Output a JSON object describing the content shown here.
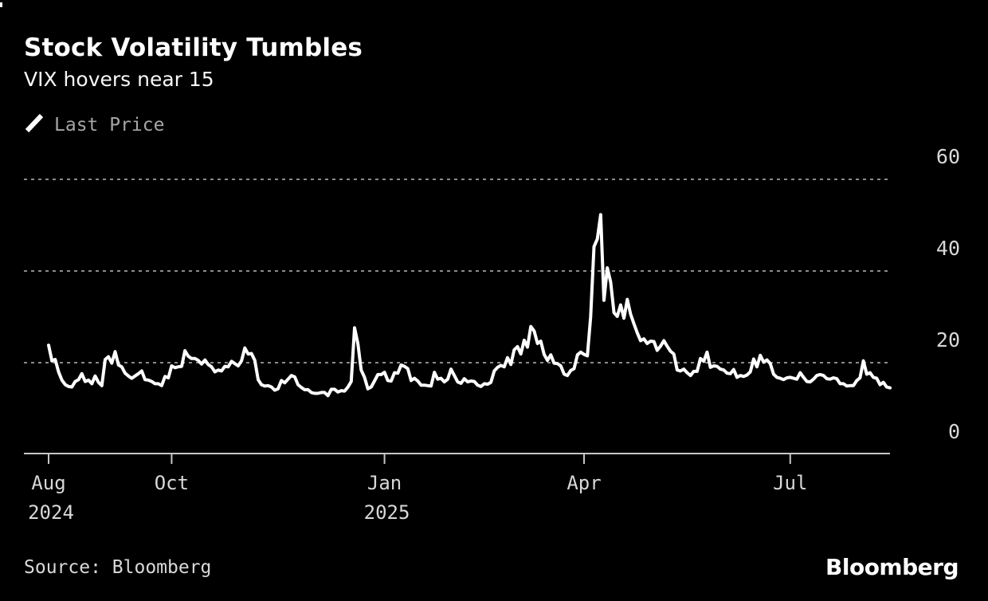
{
  "header": {
    "title": "Stock Volatility Tumbles",
    "subtitle": "VIX hovers near 15"
  },
  "legend": {
    "label": "Last Price",
    "marker": "diagonal-line-icon",
    "marker_color": "#ffffff"
  },
  "footer": {
    "source": "Source: Bloomberg",
    "brand": "Bloomberg"
  },
  "colors": {
    "background": "#000000",
    "line": "#ffffff",
    "grid": "#8b8b8b",
    "axis": "#c6c6c6",
    "tick_label": "#d8d8d8",
    "legend_text": "#a6a6a6"
  },
  "chart_data": {
    "type": "line",
    "title": "Stock Volatility Tumbles",
    "subtitle": "VIX hovers near 15",
    "xlabel": "",
    "ylabel": "",
    "x_range": "Aug 2024 - Aug 2025",
    "frequency": "daily",
    "ylim": [
      0,
      62
    ],
    "y_ticks": [
      0,
      20,
      40,
      60
    ],
    "grid": "horizontal-dashed",
    "legend_position": "top-left",
    "x_ticks": [
      {
        "label": "Aug",
        "sublabel": "2024",
        "index": 0
      },
      {
        "label": "Oct",
        "sublabel": "",
        "index": 37
      },
      {
        "label": "Jan",
        "sublabel": "2025",
        "index": 101
      },
      {
        "label": "Apr",
        "sublabel": "",
        "index": 161
      },
      {
        "label": "Jul",
        "sublabel": "",
        "index": 223
      }
    ],
    "series": [
      {
        "name": "Last Price",
        "color": "#ffffff",
        "values": [
          23.8,
          20.4,
          20.7,
          18.0,
          16.2,
          15.2,
          14.8,
          14.7,
          15.9,
          16.3,
          17.6,
          15.9,
          16.2,
          15.4,
          17.1,
          15.7,
          15.0,
          20.7,
          21.3,
          19.9,
          22.4,
          19.5,
          19.1,
          17.7,
          17.1,
          16.6,
          17.1,
          17.6,
          18.2,
          16.3,
          16.2,
          15.9,
          15.4,
          15.4,
          15.0,
          17.0,
          16.7,
          19.3,
          18.9,
          19.1,
          19.2,
          22.6,
          21.4,
          20.9,
          20.9,
          20.5,
          19.7,
          20.6,
          19.6,
          19.1,
          18.0,
          18.4,
          18.2,
          19.2,
          19.1,
          20.3,
          19.8,
          19.3,
          20.4,
          23.2,
          21.9,
          22.0,
          20.5,
          16.3,
          15.2,
          14.9,
          15.0,
          14.7,
          14.0,
          14.3,
          16.1,
          15.6,
          16.4,
          17.2,
          16.9,
          15.2,
          14.6,
          14.1,
          14.1,
          13.5,
          13.3,
          13.3,
          13.5,
          13.5,
          12.8,
          14.2,
          14.2,
          13.6,
          13.9,
          13.8,
          14.7,
          15.9,
          27.6,
          24.1,
          18.4,
          16.8,
          14.3,
          14.7,
          16.0,
          17.4,
          17.4,
          17.9,
          16.1,
          16.0,
          17.8,
          17.7,
          19.5,
          19.2,
          18.7,
          16.1,
          16.6,
          16.0,
          15.1,
          15.1,
          15.0,
          14.9,
          17.9,
          16.4,
          16.6,
          15.8,
          16.4,
          18.6,
          17.2,
          15.8,
          15.5,
          16.5,
          15.8,
          16.0,
          15.9,
          15.1,
          14.8,
          15.4,
          15.3,
          15.7,
          18.2,
          19.0,
          19.4,
          19.1,
          21.1,
          19.6,
          22.8,
          23.5,
          21.9,
          24.9,
          23.4,
          27.9,
          26.9,
          24.2,
          24.7,
          21.8,
          20.5,
          21.7,
          19.9,
          19.8,
          19.3,
          17.5,
          17.2,
          18.3,
          18.7,
          21.7,
          22.3,
          21.8,
          21.5,
          30.0,
          45.3,
          47.0,
          52.3,
          33.6,
          40.7,
          37.6,
          30.9,
          30.1,
          32.6,
          29.7,
          33.8,
          30.6,
          28.5,
          26.5,
          24.8,
          25.2,
          24.2,
          24.7,
          24.6,
          22.7,
          23.6,
          24.8,
          23.6,
          22.5,
          21.9,
          18.4,
          18.2,
          18.6,
          17.8,
          17.2,
          18.1,
          18.1,
          20.9,
          20.3,
          22.3,
          19.0,
          19.3,
          19.2,
          18.6,
          18.4,
          17.7,
          17.6,
          18.5,
          16.8,
          17.2,
          17.0,
          17.3,
          18.0,
          20.8,
          19.1,
          21.6,
          20.1,
          20.6,
          19.8,
          17.5,
          16.8,
          16.6,
          16.3,
          16.7,
          16.8,
          16.6,
          16.4,
          17.8,
          16.8,
          15.9,
          15.8,
          16.4,
          17.2,
          17.4,
          17.2,
          16.5,
          16.4,
          16.7,
          16.5,
          15.4,
          15.4,
          14.9,
          15.0,
          15.0,
          16.1,
          16.7,
          20.4,
          17.5,
          17.8,
          16.8,
          16.6,
          15.2,
          15.7,
          14.7,
          14.5
        ]
      }
    ]
  }
}
